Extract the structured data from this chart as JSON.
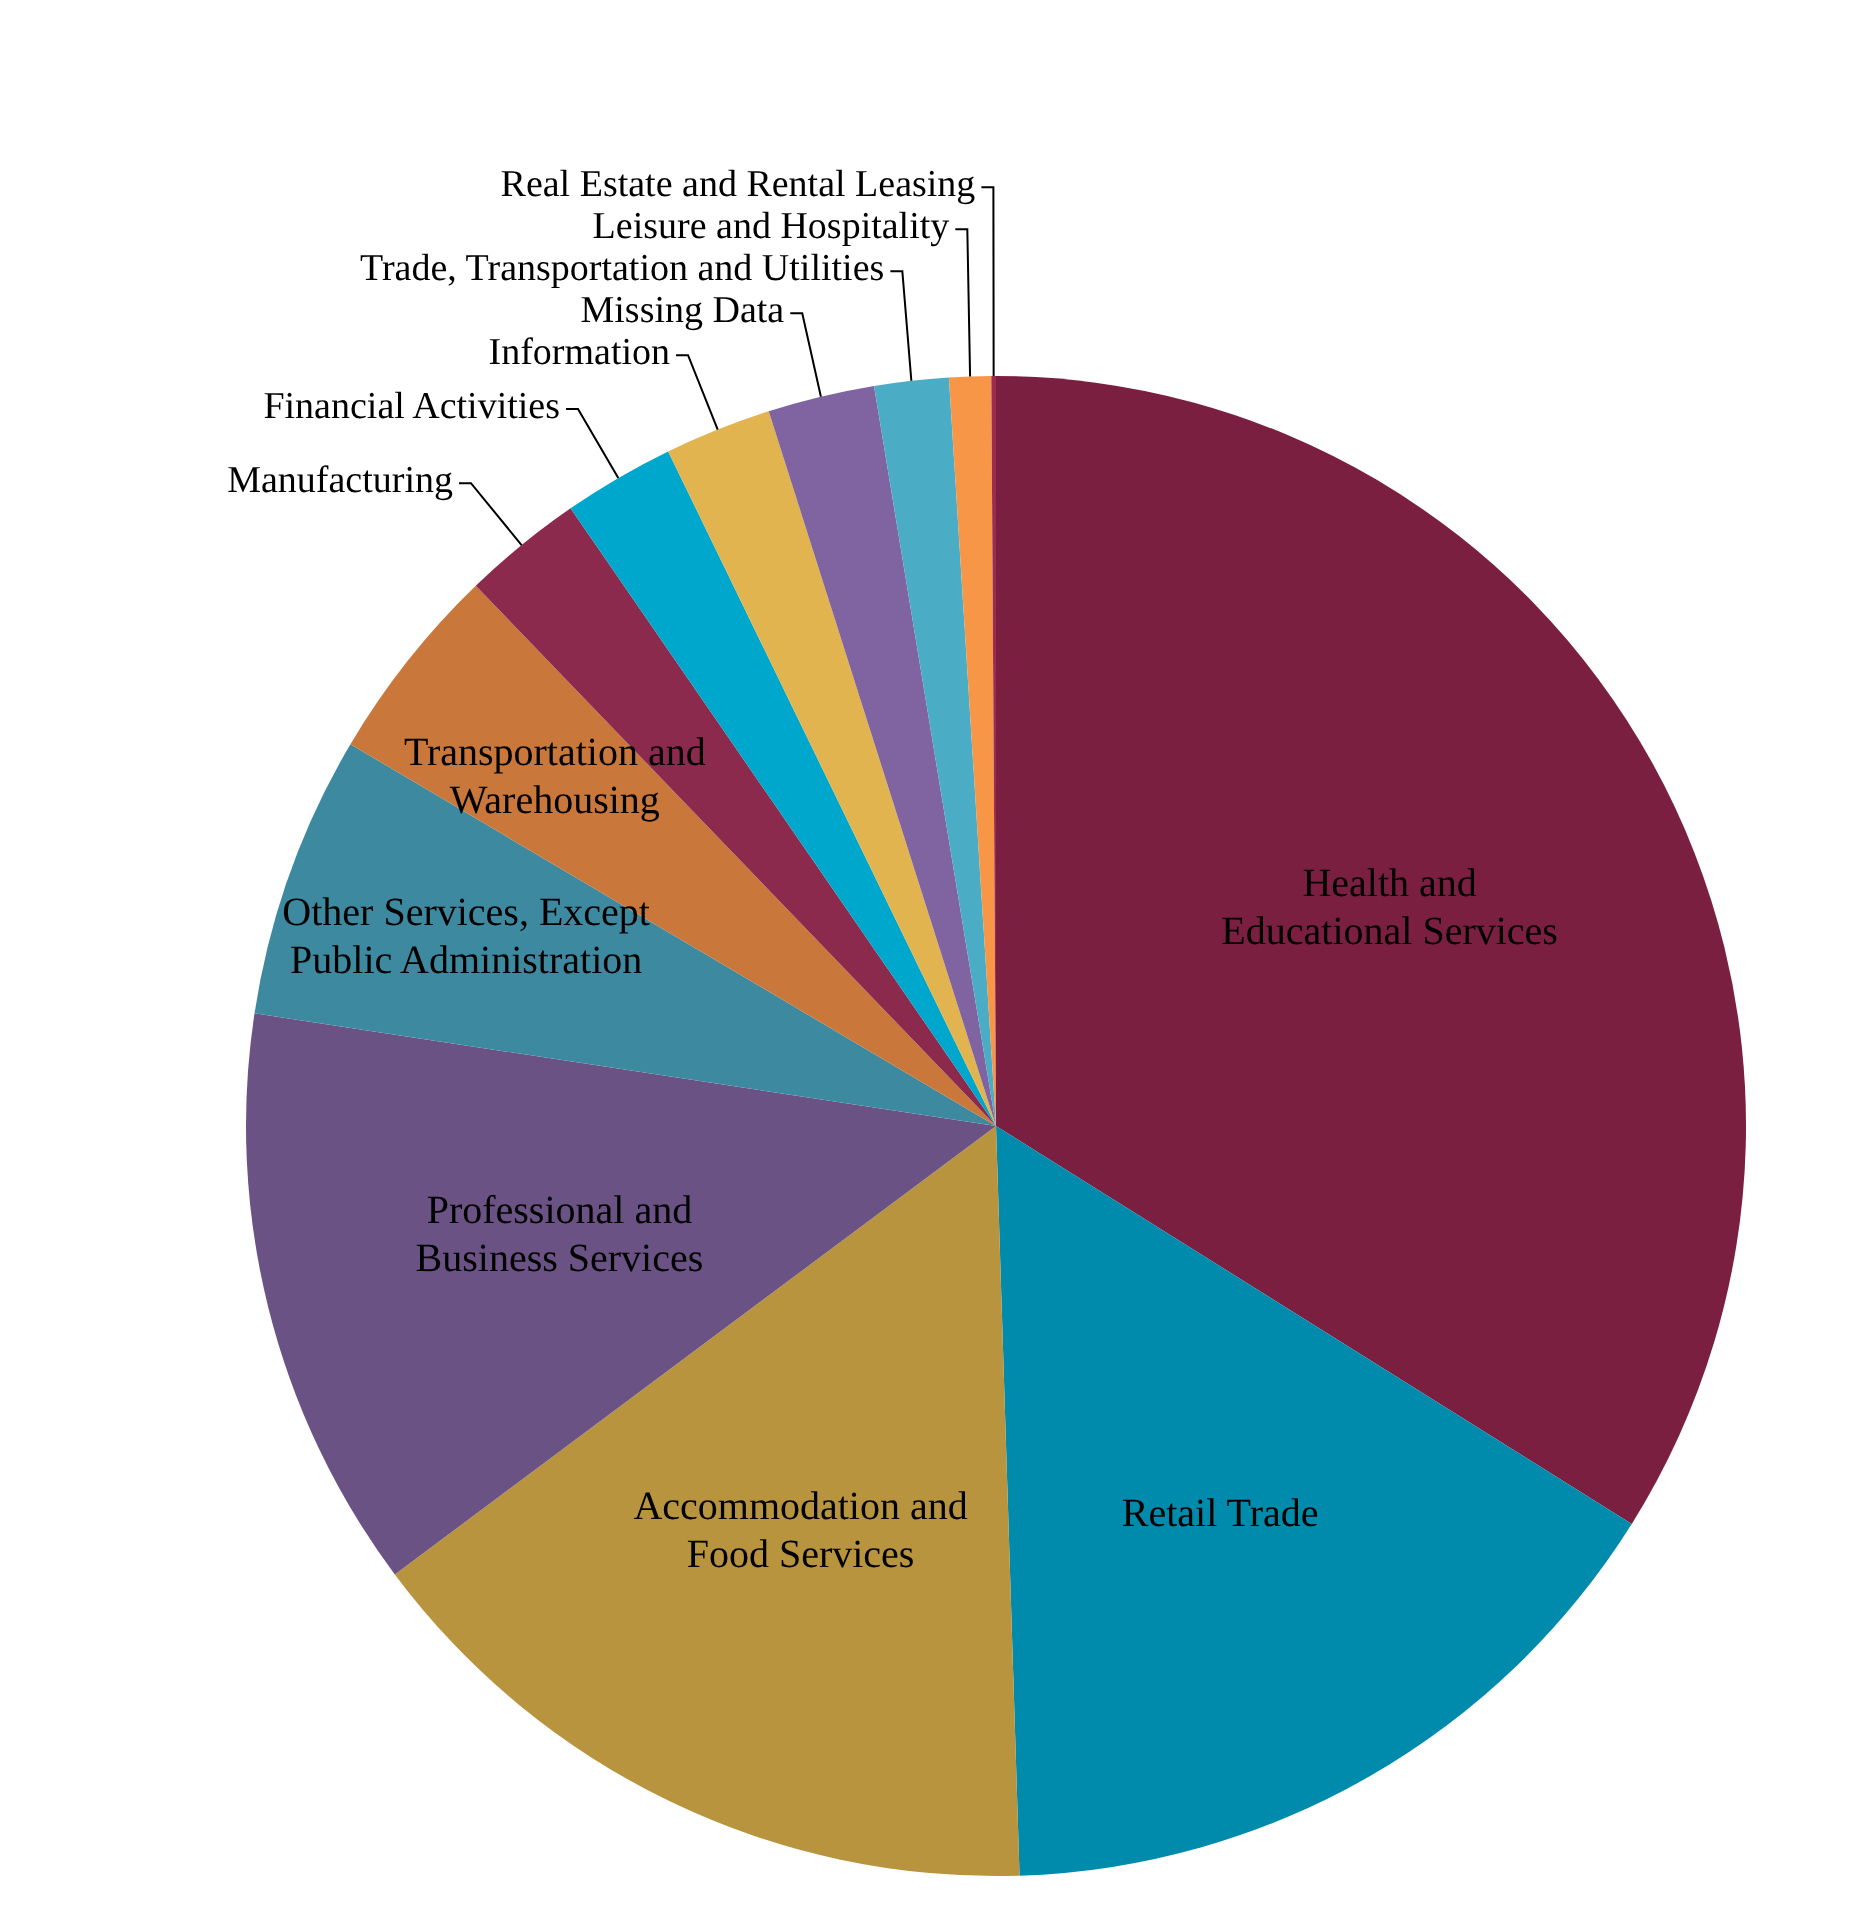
{
  "chart_data": {
    "type": "pie",
    "categories": [
      "Health and Educational Services",
      "Retail Trade",
      "Accommodation and Food Services",
      "Professional and Business Services",
      "Other Services, Except Public Administration",
      "Transportation and Warehousing",
      "Manufacturing",
      "Financial Activities",
      "Information",
      "Missing Data",
      "Trade, Transportation and Utilities",
      "Leisure and Hospitality",
      "Real Estate and Rental Leasing"
    ],
    "values": [
      33.9,
      15.6,
      15.3,
      12.6,
      6.1,
      4.3,
      2.6,
      2.4,
      2.3,
      2.3,
      1.6,
      0.9,
      0.1
    ],
    "colors": [
      "#7a1f3f",
      "#008aab",
      "#b8943e",
      "#6b5285",
      "#3d8aa0",
      "#c9773a",
      "#8b2a4d",
      "#00a7cc",
      "#e2b450",
      "#8064a2",
      "#4bacc6",
      "#f79646",
      "#9b2c50"
    ]
  }
}
